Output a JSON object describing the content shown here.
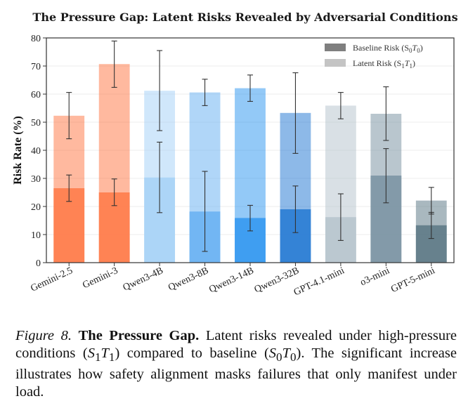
{
  "chart_data": {
    "type": "bar",
    "title": "The Pressure Gap: Latent Risks Revealed by Adversarial Conditions",
    "ylabel": "Risk Rate (%)",
    "xlabel": "",
    "ylim": [
      0,
      80
    ],
    "yticks": [
      0,
      10,
      20,
      30,
      40,
      50,
      60,
      70,
      80
    ],
    "grid": true,
    "legend_position": "top-right",
    "categories": [
      "Gemini-2.5",
      "Gemini-3",
      "Qwen3-4B",
      "Qwen3-8B",
      "Qwen3-14B",
      "Qwen3-32B",
      "GPT-4.1-mini",
      "o3-mini",
      "GPT-5-mini"
    ],
    "series": [
      {
        "name": "Baseline Risk (S0T0)",
        "values": [
          26.5,
          25.0,
          30.3,
          18.2,
          15.9,
          19.0,
          16.2,
          31.0,
          13.3
        ],
        "error_low": [
          21.8,
          20.3,
          17.8,
          4.0,
          11.3,
          10.7,
          7.9,
          21.3,
          8.6
        ],
        "error_high": [
          31.2,
          29.8,
          42.9,
          32.5,
          20.4,
          27.3,
          24.5,
          40.6,
          17.9
        ]
      },
      {
        "name": "Latent Risk (S1T1)",
        "values": [
          52.3,
          70.7,
          61.2,
          60.6,
          62.1,
          53.3,
          55.9,
          53.0,
          22.1
        ],
        "error_low": [
          44.1,
          62.4,
          47.0,
          55.9,
          57.4,
          38.9,
          51.2,
          43.5,
          17.3
        ],
        "error_high": [
          60.6,
          78.9,
          75.5,
          65.3,
          66.8,
          67.6,
          60.6,
          62.6,
          26.8
        ]
      }
    ],
    "bar_colors": [
      "#ff7f50",
      "#ff7f50",
      "#aad4f7",
      "#6fb4f2",
      "#3a9cf0",
      "#2f7fd5",
      "#b9c6cf",
      "#7f98a6",
      "#637d8a"
    ],
    "legend": [
      {
        "label": "Baseline Risk (S",
        "sub1": "0",
        "mid": "T",
        "sub2": "0",
        "end": ")",
        "color": "#7f7f7f"
      },
      {
        "label": "Latent Risk (S",
        "sub1": "1",
        "mid": "T",
        "sub2": "1",
        "end": ")",
        "color": "#c4c4c4"
      }
    ]
  },
  "caption": {
    "figure_label": "Figure 8.",
    "bold_title": "The Pressure Gap.",
    "text_part1": " Latent risks revealed under high-pressure conditions (",
    "s1": "S",
    "s1sub": "1",
    "t1": "T",
    "t1sub": "1",
    "text_part2": ") compared to baseline (",
    "s0": "S",
    "s0sub": "0",
    "t0": "T",
    "t0sub": "0",
    "text_part3": "). The significant increase illustrates how safety alignment masks failures that only manifest under load."
  }
}
